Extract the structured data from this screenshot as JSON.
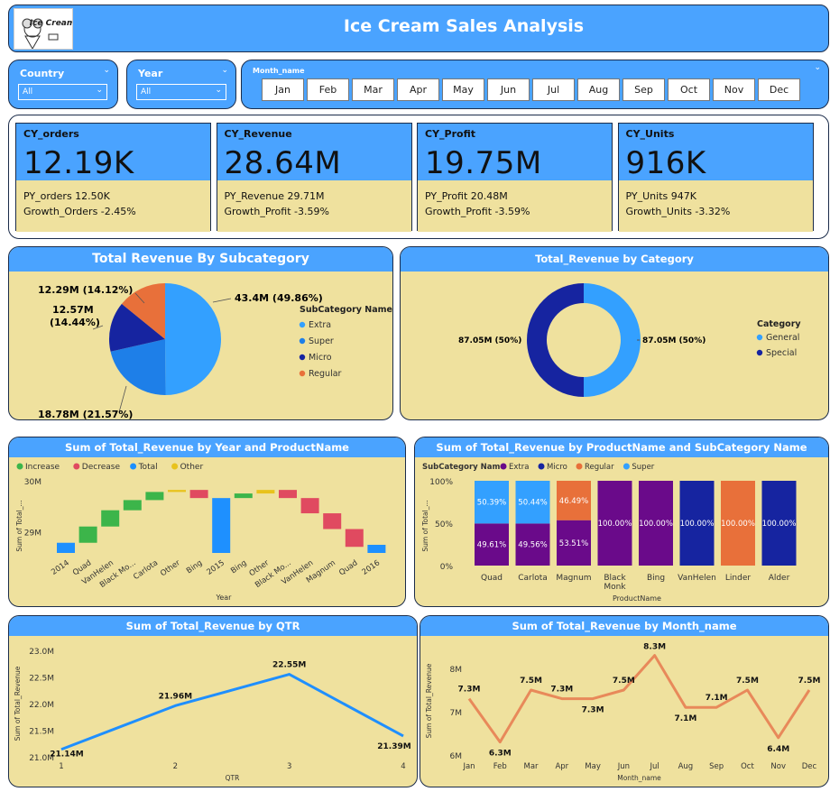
{
  "header": {
    "title": "Ice Cream Sales Analysis",
    "logo_text": "Ice Cream"
  },
  "filters": {
    "country": {
      "label": "Country",
      "value": "All"
    },
    "year": {
      "label": "Year",
      "value": "All"
    },
    "month": {
      "label": "Month_name",
      "options": [
        "Jan",
        "Feb",
        "Mar",
        "Apr",
        "May",
        "Jun",
        "Jul",
        "Aug",
        "Sep",
        "Oct",
        "Nov",
        "Dec"
      ]
    }
  },
  "kpis": [
    {
      "title": "CY_orders",
      "value": "12.19K",
      "py": "PY_orders 12.50K",
      "growth": "Growth_Orders -2.45%"
    },
    {
      "title": "CY_Revenue",
      "value": "28.64M",
      "py": "PY_Revenue 29.71M",
      "growth": "Growth_Profit -3.59%"
    },
    {
      "title": "CY_Profit",
      "value": "19.75M",
      "py": "PY_Profit 20.48M",
      "growth": "Growth_Profit -3.59%"
    },
    {
      "title": "CY_Units",
      "value": "916K",
      "py": "PY_Units 947K",
      "growth": "Growth_Units -3.32%"
    }
  ],
  "colors": {
    "accent": "#4aa3ff",
    "panel": "#efe19e",
    "increase": "#3cb54a",
    "decrease": "#e04a60",
    "total": "#1e90ff",
    "other": "#e8c21c",
    "purple": "#6a0a8a",
    "navy": "#1624a0",
    "orange": "#e8703a",
    "blue": "#33a0ff"
  },
  "chart_data": [
    {
      "type": "pie",
      "title": "Total Revenue By Subcategory",
      "legend_title": "SubCategory Name",
      "slices": [
        {
          "name": "Extra",
          "value": 43.4,
          "label": "43.4M (49.86%)"
        },
        {
          "name": "Super",
          "value": 18.78,
          "label": "18.78M (21.57%)"
        },
        {
          "name": "Micro",
          "value": 12.57,
          "label": "12.57M (14.44%)"
        },
        {
          "name": "Regular",
          "value": 12.29,
          "label": "12.29M (14.12%)"
        }
      ],
      "label_12_57_line1": "12.57M",
      "label_12_57_line2": "(14.44%)"
    },
    {
      "type": "pie",
      "title": "Total_Revenue by Category",
      "legend_title": "Category",
      "slices": [
        {
          "name": "General",
          "value": 87.05,
          "label": "87.05M (50%)"
        },
        {
          "name": "Special",
          "value": 87.05,
          "label": "87.05M (50%)"
        }
      ]
    },
    {
      "type": "bar",
      "title": "Sum of Total_Revenue by Year and ProductName",
      "xlabel": "Year",
      "ylabel": "Sum of Total_...",
      "legend": [
        "Increase",
        "Decrease",
        "Total",
        "Other"
      ],
      "categories": [
        "2014",
        "Quad",
        "VanHelen",
        "Black Mo...",
        "Carlota",
        "Other",
        "Bing",
        "2015",
        "Bing",
        "Other",
        "Black Mo...",
        "VanHelen",
        "Magnum",
        "Quad",
        "2016"
      ],
      "yticks": [
        "30M",
        "29M"
      ],
      "steps": [
        {
          "kind": "total",
          "from": 28.58,
          "to": 28.78
        },
        {
          "kind": "increase",
          "from": 28.78,
          "to": 29.1
        },
        {
          "kind": "increase",
          "from": 29.1,
          "to": 29.42
        },
        {
          "kind": "increase",
          "from": 29.42,
          "to": 29.62
        },
        {
          "kind": "increase",
          "from": 29.62,
          "to": 29.78
        },
        {
          "kind": "other",
          "from": 29.78,
          "to": 29.82
        },
        {
          "kind": "decrease",
          "from": 29.82,
          "to": 29.66
        },
        {
          "kind": "total",
          "from": 28.58,
          "to": 29.66
        },
        {
          "kind": "increase",
          "from": 29.66,
          "to": 29.75
        },
        {
          "kind": "other",
          "from": 29.75,
          "to": 29.82
        },
        {
          "kind": "decrease",
          "from": 29.82,
          "to": 29.66
        },
        {
          "kind": "decrease",
          "from": 29.66,
          "to": 29.36
        },
        {
          "kind": "decrease",
          "from": 29.36,
          "to": 29.05
        },
        {
          "kind": "decrease",
          "from": 29.05,
          "to": 28.7
        },
        {
          "kind": "total",
          "from": 28.58,
          "to": 28.74
        }
      ]
    },
    {
      "type": "bar",
      "title": "Sum of Total_Revenue by ProductName and SubCategory Name",
      "xlabel": "ProductName",
      "ylabel": "Sum of Total_...",
      "legend_title": "SubCategory Name",
      "legend": [
        "Extra",
        "Micro",
        "Regular",
        "Super"
      ],
      "yticks": [
        "100%",
        "50%",
        "0%"
      ],
      "categories": [
        "Quad",
        "Carlota",
        "Magnum",
        "Black Monk",
        "Bing",
        "VanHelen",
        "Linder",
        "Alder"
      ],
      "stacks": [
        [
          {
            "s": "Extra",
            "v": 49.61,
            "label": "49.61%"
          },
          {
            "s": "Super",
            "v": 50.39,
            "label": "50.39%"
          }
        ],
        [
          {
            "s": "Extra",
            "v": 49.56,
            "label": "49.56%"
          },
          {
            "s": "Super",
            "v": 50.44,
            "label": "50.44%"
          }
        ],
        [
          {
            "s": "Extra",
            "v": 53.51,
            "label": "53.51%"
          },
          {
            "s": "Regular",
            "v": 46.49,
            "label": "46.49%"
          }
        ],
        [
          {
            "s": "Extra",
            "v": 100,
            "label": "100.00%"
          }
        ],
        [
          {
            "s": "Extra",
            "v": 100,
            "label": "100.00%"
          }
        ],
        [
          {
            "s": "Micro",
            "v": 100,
            "label": "100.00%"
          }
        ],
        [
          {
            "s": "Regular",
            "v": 100,
            "label": "100.00%"
          }
        ],
        [
          {
            "s": "Micro",
            "v": 100,
            "label": "100.00%"
          }
        ]
      ]
    },
    {
      "type": "line",
      "title": "Sum of Total_Revenue by QTR",
      "xlabel": "QTR",
      "ylabel": "Sum of Total_Revenue",
      "x": [
        "1",
        "2",
        "3",
        "4"
      ],
      "values": [
        21.14,
        21.96,
        22.55,
        21.39
      ],
      "labels": [
        "21.14M",
        "21.96M",
        "22.55M",
        "21.39M"
      ],
      "ylim": [
        21.0,
        23.0
      ],
      "yticks": [
        "23.0M",
        "22.5M",
        "22.0M",
        "21.5M",
        "21.0M"
      ]
    },
    {
      "type": "line",
      "title": "Sum of Total_Revenue by Month_name",
      "xlabel": "Month_name",
      "ylabel": "Sum of Total_Revenue",
      "x": [
        "Jan",
        "Feb",
        "Mar",
        "Apr",
        "May",
        "Jun",
        "Jul",
        "Aug",
        "Sep",
        "Oct",
        "Nov",
        "Dec"
      ],
      "values": [
        7.3,
        6.3,
        7.5,
        7.3,
        7.3,
        7.5,
        8.3,
        7.1,
        7.1,
        7.5,
        6.4,
        7.5
      ],
      "labels": [
        "7.3M",
        "6.3M",
        "7.5M",
        "7.3M",
        "7.3M",
        "7.5M",
        "8.3M",
        "7.1M",
        "7.1M",
        "7.5M",
        "6.4M",
        "7.5M"
      ],
      "ylim": [
        6.0,
        8.5
      ],
      "yticks": [
        "8M",
        "7M",
        "6M"
      ]
    }
  ]
}
